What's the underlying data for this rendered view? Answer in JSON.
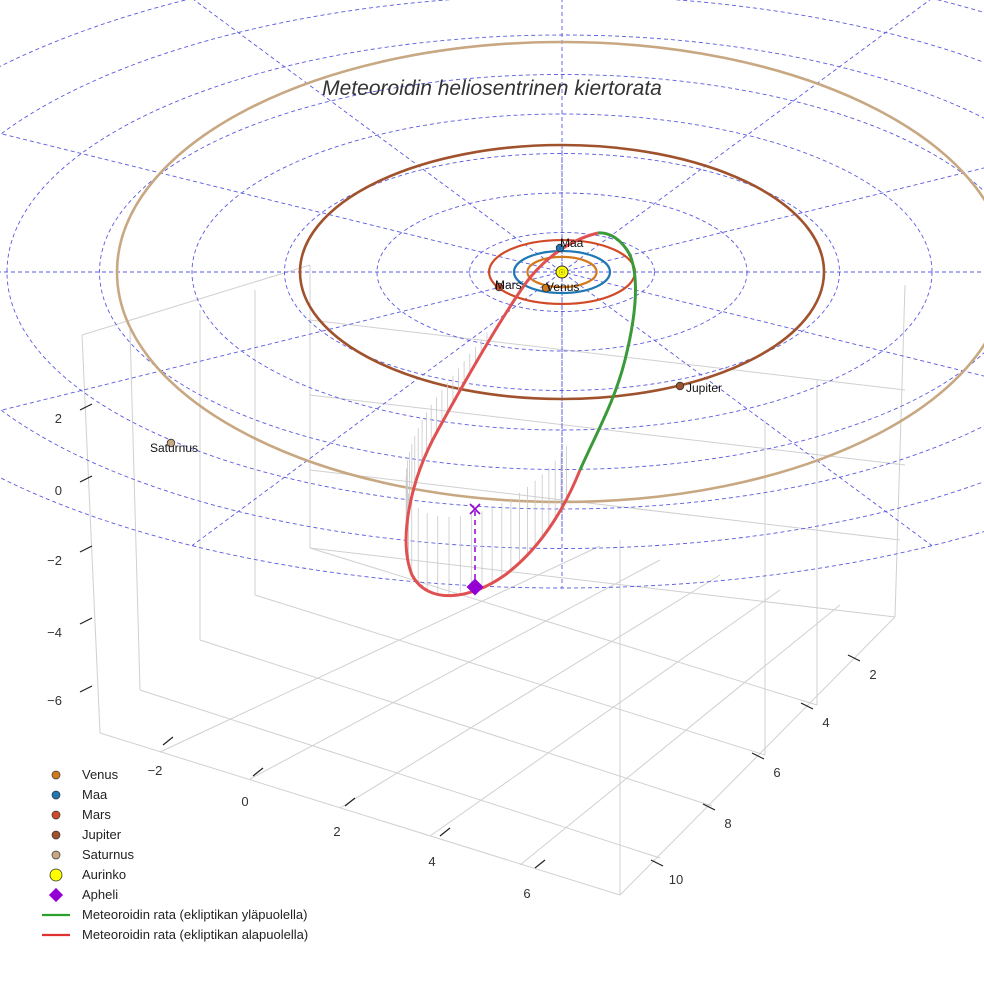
{
  "chart_data": {
    "type": "scatter",
    "projection": "3d",
    "title": "Meteoroidin heliosentrinen kiertorata",
    "xlabel": "",
    "ylabel": "",
    "zlabel": "",
    "x_ticks": [
      -2,
      0,
      2,
      4,
      6
    ],
    "y_ticks": [
      2,
      4,
      6,
      8,
      10
    ],
    "z_ticks": [
      2,
      0,
      -2,
      -4,
      -6
    ],
    "ecliptic_rings_au": [
      5,
      10,
      15,
      20,
      25,
      30,
      35,
      40
    ],
    "bodies": [
      {
        "key": "sun",
        "name": "Aurinko",
        "color": "#ffff00",
        "orbit_au": 0,
        "pos": [
          0,
          0,
          0
        ]
      },
      {
        "key": "venus",
        "name": "Venus",
        "color": "#d2791b",
        "orbit_au": 0.72,
        "pos": [
          -0.2,
          0.7,
          0
        ]
      },
      {
        "key": "earth",
        "name": "Maa",
        "color": "#1f77b4",
        "orbit_au": 1.0,
        "pos": [
          0.0,
          -1.0,
          0
        ]
      },
      {
        "key": "mars",
        "name": "Mars",
        "color": "#d14a28",
        "orbit_au": 1.52,
        "pos": [
          -1.4,
          0.6,
          0
        ]
      },
      {
        "key": "jupiter",
        "name": "Jupiter",
        "color": "#a0522d",
        "orbit_au": 5.2,
        "pos": [
          3.2,
          4.1,
          0
        ]
      },
      {
        "key": "saturn",
        "name": "Saturnus",
        "color": "#c8a882",
        "orbit_au": 9.5,
        "pos": [
          -9.0,
          3.0,
          0
        ]
      }
    ],
    "aphelion": {
      "name": "Apheli",
      "color": "#9400d3",
      "pos": [
        -2.0,
        7.3,
        -5.3
      ],
      "projection_z": 0
    },
    "series": [
      {
        "name": "Meteoroidin rata (ekliptikan yläpuolella)",
        "color": "#2ca02c",
        "segment": "above"
      },
      {
        "name": "Meteoroidin rata (ekliptikan alapuolella)",
        "color": "#e03030",
        "segment": "below"
      }
    ],
    "legend_position": "bottom-left",
    "grid": true
  }
}
